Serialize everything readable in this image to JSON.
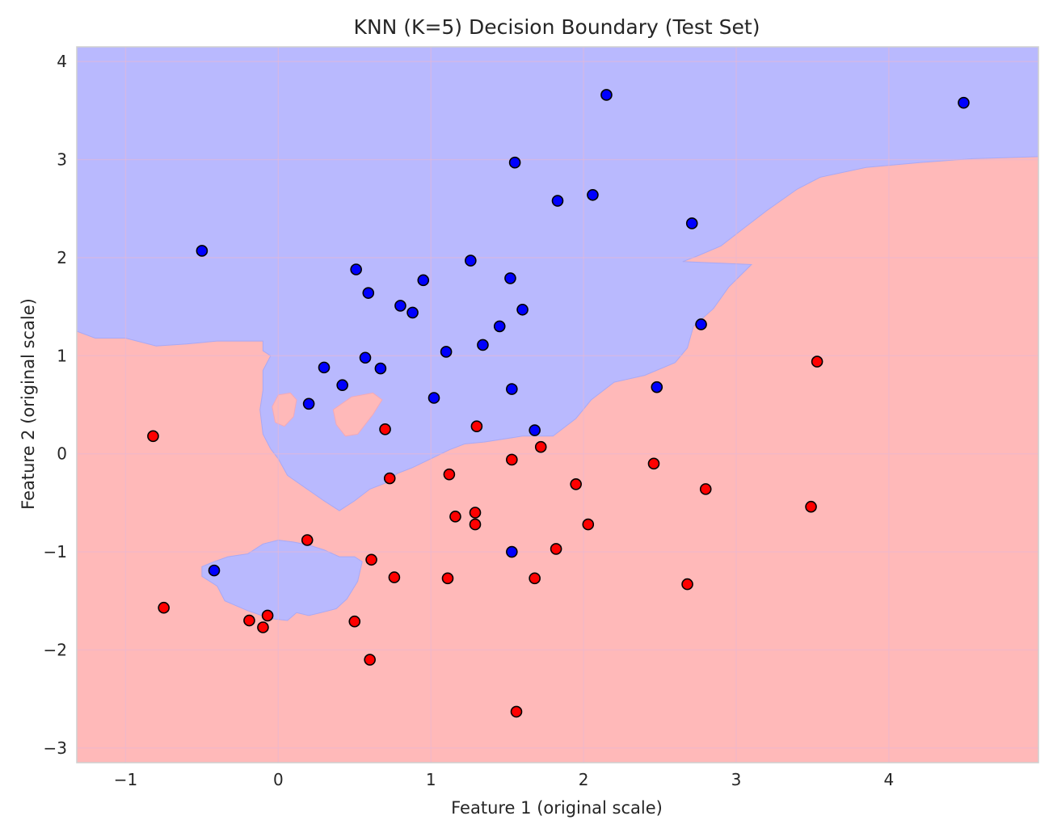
{
  "chart_data": {
    "type": "scatter",
    "title": "KNN (K=5) Decision Boundary (Test Set)",
    "xlabel": "Feature 1 (original scale)",
    "ylabel": "Feature 2 (original scale)",
    "xlim": [
      -1.32,
      4.98
    ],
    "ylim": [
      -3.15,
      4.15
    ],
    "xticks": [
      -1,
      0,
      1,
      2,
      3,
      4
    ],
    "xtick_labels": [
      "−1",
      "0",
      "1",
      "2",
      "3",
      "4"
    ],
    "yticks": [
      -3,
      -2,
      -1,
      0,
      1,
      2,
      3,
      4
    ],
    "ytick_labels": [
      "−3",
      "−2",
      "−1",
      "0",
      "1",
      "2",
      "3",
      "4"
    ],
    "grid": true,
    "colors": {
      "blue_region": "#b9b9fe",
      "red_region": "#ffb9b9",
      "blue_point": "#0000ff",
      "red_point": "#ff0000",
      "point_edge": "#000000"
    },
    "blue_region_boundary": [
      [
        -1.32,
        4.15
      ],
      [
        4.98,
        4.15
      ],
      [
        4.98,
        3.03
      ],
      [
        4.55,
        3.01
      ],
      [
        4.2,
        2.97
      ],
      [
        3.85,
        2.92
      ],
      [
        3.55,
        2.82
      ],
      [
        3.4,
        2.7
      ],
      [
        3.2,
        2.48
      ],
      [
        3.05,
        2.3
      ],
      [
        2.9,
        2.12
      ],
      [
        2.75,
        2.02
      ],
      [
        2.65,
        1.96
      ],
      [
        3.1,
        1.93
      ],
      [
        2.95,
        1.7
      ],
      [
        2.85,
        1.48
      ],
      [
        2.72,
        1.3
      ],
      [
        2.68,
        1.08
      ],
      [
        2.6,
        0.93
      ],
      [
        2.4,
        0.8
      ],
      [
        2.2,
        0.73
      ],
      [
        2.05,
        0.55
      ],
      [
        1.95,
        0.36
      ],
      [
        1.8,
        0.18
      ],
      [
        1.6,
        0.18
      ],
      [
        1.35,
        0.12
      ],
      [
        1.22,
        0.1
      ],
      [
        1.12,
        0.04
      ],
      [
        1.0,
        -0.05
      ],
      [
        0.88,
        -0.14
      ],
      [
        0.78,
        -0.2
      ],
      [
        0.7,
        -0.3
      ],
      [
        0.6,
        -0.36
      ],
      [
        0.5,
        -0.48
      ],
      [
        0.4,
        -0.58
      ],
      [
        0.3,
        -0.48
      ],
      [
        0.18,
        -0.35
      ],
      [
        0.06,
        -0.22
      ],
      [
        0.0,
        -0.05
      ],
      [
        -0.05,
        0.05
      ],
      [
        -0.1,
        0.2
      ],
      [
        -0.12,
        0.45
      ],
      [
        -0.1,
        0.65
      ],
      [
        -0.1,
        0.85
      ],
      [
        -0.05,
        1.0
      ],
      [
        -0.1,
        1.05
      ],
      [
        -0.1,
        1.15
      ],
      [
        -0.4,
        1.15
      ],
      [
        -0.6,
        1.12
      ],
      [
        -0.8,
        1.1
      ],
      [
        -1.0,
        1.18
      ],
      [
        -1.2,
        1.18
      ],
      [
        -1.32,
        1.25
      ]
    ],
    "blue_island_boundary": [
      [
        -0.42,
        -1.1
      ],
      [
        -0.33,
        -1.05
      ],
      [
        -0.2,
        -1.02
      ],
      [
        -0.1,
        -0.92
      ],
      [
        0.0,
        -0.88
      ],
      [
        0.1,
        -0.9
      ],
      [
        0.2,
        -0.93
      ],
      [
        0.3,
        -0.98
      ],
      [
        0.4,
        -1.05
      ],
      [
        0.5,
        -1.05
      ],
      [
        0.55,
        -1.1
      ],
      [
        0.52,
        -1.3
      ],
      [
        0.45,
        -1.48
      ],
      [
        0.38,
        -1.58
      ],
      [
        0.28,
        -1.62
      ],
      [
        0.2,
        -1.65
      ],
      [
        0.12,
        -1.62
      ],
      [
        0.06,
        -1.7
      ],
      [
        -0.05,
        -1.68
      ],
      [
        -0.2,
        -1.6
      ],
      [
        -0.35,
        -1.5
      ],
      [
        -0.4,
        -1.35
      ],
      [
        -0.5,
        -1.25
      ],
      [
        -0.5,
        -1.15
      ]
    ],
    "red_island_boundaries": [
      [
        [
          0.0,
          0.6
        ],
        [
          0.08,
          0.62
        ],
        [
          0.12,
          0.55
        ],
        [
          0.1,
          0.38
        ],
        [
          0.04,
          0.28
        ],
        [
          -0.02,
          0.32
        ],
        [
          -0.04,
          0.48
        ]
      ],
      [
        [
          0.36,
          0.45
        ],
        [
          0.48,
          0.58
        ],
        [
          0.62,
          0.62
        ],
        [
          0.68,
          0.55
        ],
        [
          0.62,
          0.4
        ],
        [
          0.52,
          0.2
        ],
        [
          0.44,
          0.18
        ],
        [
          0.38,
          0.3
        ]
      ]
    ],
    "series": [
      {
        "class": "blue",
        "x": [
          2.15,
          4.49,
          1.55,
          1.83,
          2.06,
          2.71,
          -0.5,
          0.51,
          1.26,
          0.95,
          1.52,
          0.59,
          0.8,
          1.6,
          0.88,
          1.45,
          2.77,
          1.34,
          1.1,
          0.57,
          0.3,
          0.67,
          0.42,
          2.48,
          1.53,
          1.02,
          0.2,
          1.68,
          1.53,
          -0.42
        ],
        "y": [
          3.66,
          3.58,
          2.97,
          2.58,
          2.64,
          2.35,
          2.07,
          1.88,
          1.97,
          1.77,
          1.79,
          1.64,
          1.51,
          1.47,
          1.44,
          1.3,
          1.32,
          1.11,
          1.04,
          0.98,
          0.88,
          0.87,
          0.7,
          0.68,
          0.66,
          0.57,
          0.51,
          0.24,
          -1.0,
          -1.19
        ]
      },
      {
        "class": "red",
        "x": [
          3.53,
          -0.82,
          0.7,
          1.3,
          1.72,
          1.53,
          2.46,
          0.73,
          1.12,
          1.95,
          2.8,
          3.49,
          1.16,
          1.29,
          1.29,
          2.03,
          0.19,
          0.61,
          1.82,
          0.76,
          1.11,
          1.68,
          2.68,
          -0.75,
          -0.19,
          -0.07,
          -0.1,
          0.5,
          0.6,
          1.56
        ],
        "y": [
          0.94,
          0.18,
          0.25,
          0.28,
          0.07,
          -0.06,
          -0.1,
          -0.25,
          -0.21,
          -0.31,
          -0.36,
          -0.54,
          -0.64,
          -0.6,
          -0.72,
          -0.72,
          -0.88,
          -1.08,
          -0.97,
          -1.26,
          -1.27,
          -1.27,
          -1.33,
          -1.57,
          -1.7,
          -1.65,
          -1.77,
          -1.71,
          -2.1,
          -2.63
        ]
      }
    ]
  }
}
